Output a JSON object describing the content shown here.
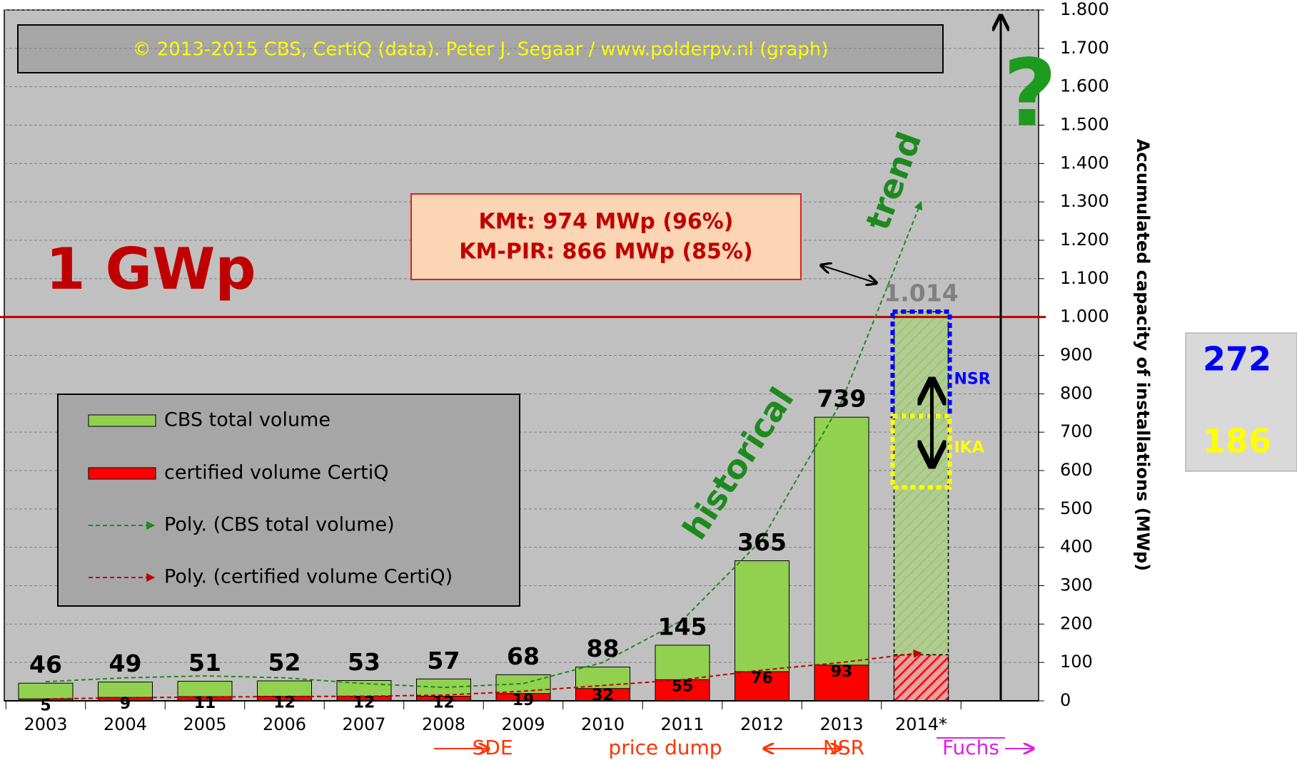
{
  "chart_data": {
    "type": "bar",
    "subtitle": "© 2013-2015 CBS, CertiQ (data). Peter J. Segaar / www.polderpv.nl (graph)",
    "y_axis_label": "Accumulated capacity of installations (MWp)",
    "categories": [
      "2003",
      "2004",
      "2005",
      "2006",
      "2007",
      "2008",
      "2009",
      "2010",
      "2011",
      "2012",
      "2013",
      "2014*"
    ],
    "series": [
      {
        "name": "CBS total volume",
        "color": "#92d050",
        "values": [
          46,
          49,
          51,
          52,
          53,
          57,
          68,
          88,
          145,
          365,
          739,
          1014
        ],
        "value_labels": [
          "46",
          "49",
          "51",
          "52",
          "53",
          "57",
          "68",
          "88",
          "145",
          "365",
          "739",
          "1.014"
        ]
      },
      {
        "name": "certified volume CertiQ",
        "color": "#ff0000",
        "values": [
          5,
          9,
          11,
          12,
          12,
          12,
          19,
          32,
          55,
          76,
          93,
          120
        ],
        "value_labels": [
          "5",
          "9",
          "11",
          "12",
          "12",
          "12",
          "19",
          "32",
          "55",
          "76",
          "93",
          null
        ]
      }
    ],
    "trendlines": [
      {
        "name": "Poly. (CBS total volume)",
        "color": "#1e8a1e",
        "values": [
          50,
          60,
          65,
          60,
          45,
          35,
          45,
          100,
          210,
          420,
          780,
          1300
        ]
      },
      {
        "name": "Poly. (certified volume CertiQ)",
        "color": "#c00000",
        "values": [
          5,
          8,
          10,
          11,
          12,
          15,
          25,
          40,
          55,
          80,
          100,
          125
        ]
      }
    ],
    "hatched_last": true,
    "ylim": [
      0,
      1800
    ],
    "yticks": [
      0,
      100,
      200,
      300,
      400,
      500,
      600,
      700,
      800,
      900,
      {
        "value": 1000,
        "label": "1.000"
      },
      {
        "value": 1100,
        "label": "1.100"
      },
      {
        "value": 1200,
        "label": "1.200"
      },
      {
        "value": 1300,
        "label": "1.300"
      },
      {
        "value": 1400,
        "label": "1.400"
      },
      {
        "value": 1500,
        "label": "1.500"
      },
      {
        "value": 1600,
        "label": "1.600"
      },
      {
        "value": 1700,
        "label": "1.700"
      },
      {
        "value": 1800,
        "label": "1.800"
      }
    ],
    "grid": true,
    "reference_line": {
      "value": 1000,
      "label": "1 GWp",
      "color": "#c00000"
    },
    "info_box": [
      "KMt: 974 MWp (96%)",
      "KM-PIR: 866 MWp (85%)"
    ],
    "scenarios": [
      {
        "name": "NSR",
        "color": "#0000ff",
        "top": 1014,
        "size": 272
      },
      {
        "name": "IKA",
        "color": "#ffff00",
        "size": 186
      }
    ],
    "annotations": [
      "trend",
      "historical",
      "?"
    ],
    "timeline": [
      {
        "text": "SDE",
        "color": "#ff3300"
      },
      {
        "text": "price dump",
        "color": "#ff3300"
      },
      {
        "text": "NSR",
        "color": "#ff3300"
      },
      {
        "text": "Fuchs",
        "color": "#e020e0"
      }
    ]
  }
}
